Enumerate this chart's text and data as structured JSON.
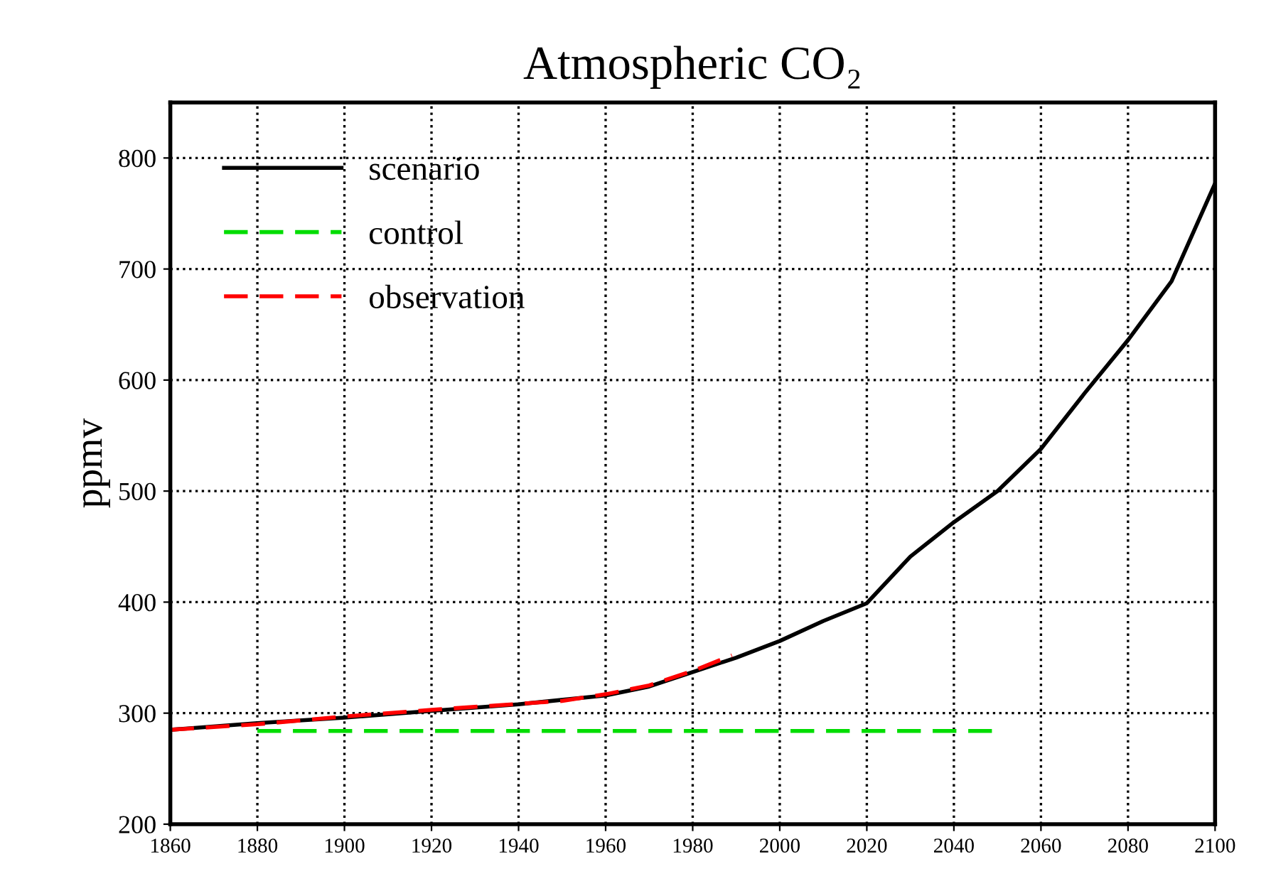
{
  "chart_data": {
    "type": "line",
    "title": "Atmospheric CO₂",
    "ylabel": "ppmv",
    "x": [
      1860,
      1880,
      1900,
      1920,
      1940,
      1960,
      1970,
      1980,
      1990,
      2000,
      2010,
      2020,
      2030,
      2040,
      2050,
      2060,
      2070,
      2080,
      2090,
      2100
    ],
    "series": [
      {
        "name": "scenario",
        "color": "#000000",
        "line_style": "solid",
        "values": [
          285,
          291,
          296,
          302,
          308,
          316,
          324,
          337,
          350,
          365,
          383,
          399,
          441,
          472,
          500,
          538,
          588,
          636,
          689,
          777
        ]
      },
      {
        "name": "control",
        "color": "#00dd00",
        "line_style": "dashed",
        "x": [
          1880,
          2050
        ],
        "values": [
          284,
          284
        ]
      },
      {
        "name": "observation",
        "color": "#ff0000",
        "line_style": "dashed",
        "x": [
          1860,
          1880,
          1900,
          1920,
          1935,
          1950,
          1960,
          1970,
          1980,
          1989
        ],
        "values": [
          285,
          290,
          297,
          303,
          307,
          311,
          317,
          325,
          338,
          352
        ]
      }
    ],
    "xlim": [
      1860,
      2100
    ],
    "xticks": [
      1860,
      1880,
      1900,
      1920,
      1940,
      1960,
      1980,
      2000,
      2020,
      2040,
      2060,
      2080,
      2100
    ],
    "ylim": [
      200,
      850
    ],
    "yticks": [
      200,
      300,
      400,
      500,
      600,
      700,
      800
    ],
    "grid": true,
    "legend": "top left"
  }
}
